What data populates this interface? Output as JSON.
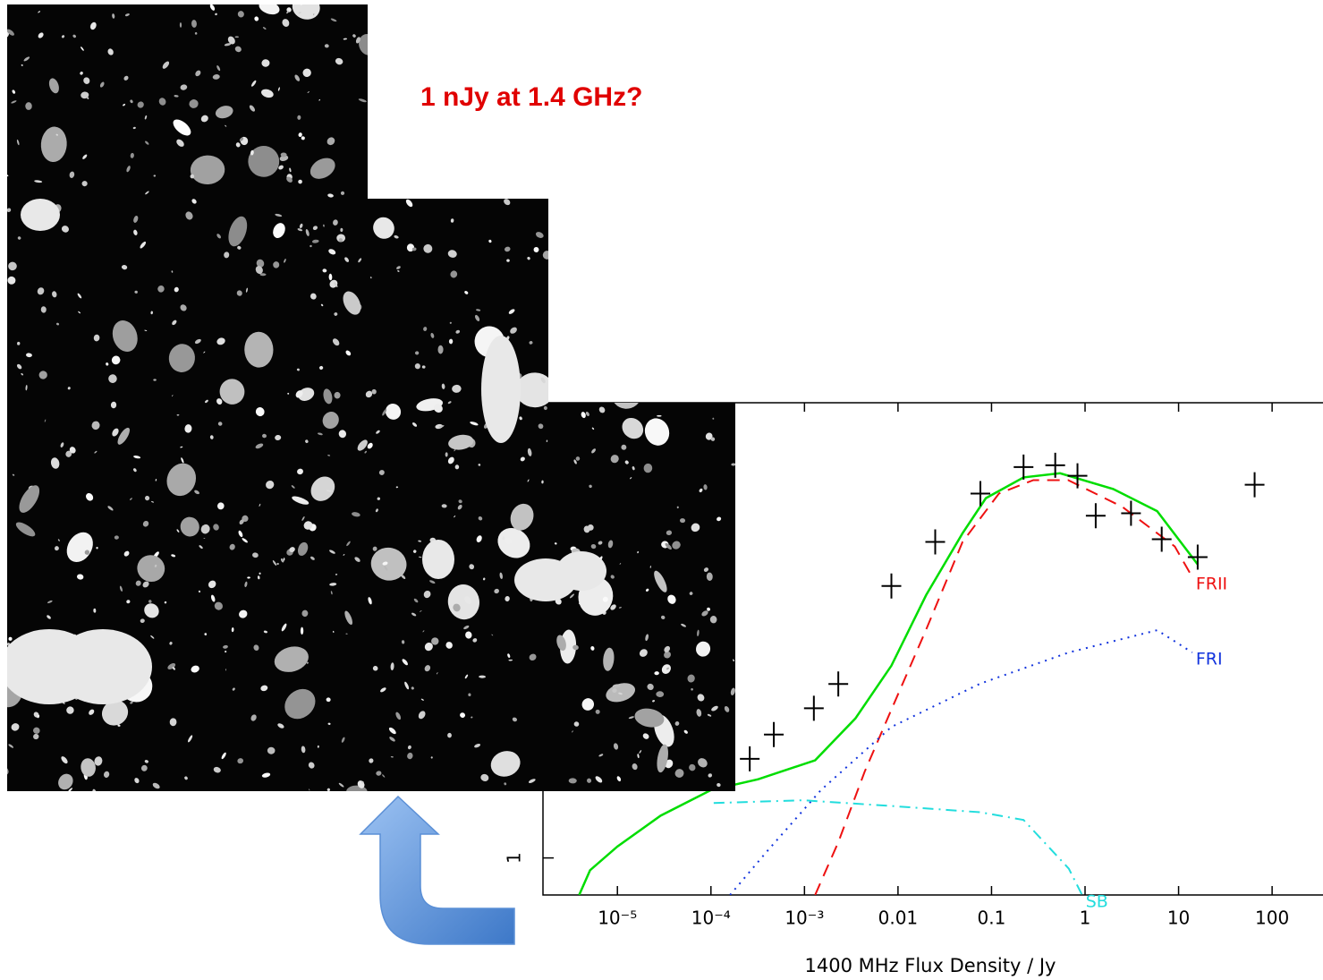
{
  "chart_data": {
    "type": "line",
    "title": "1 nJy at 1.4 GHz?",
    "x_label": "1400 MHz Flux Density / Jy",
    "x_log": true,
    "y_log": true,
    "xlim": [
      1.6e-06,
      350
    ],
    "ylim": [
      0.57,
      1000
    ],
    "xticks": [
      {
        "value": 1e-05,
        "label": "10⁻⁵"
      },
      {
        "value": 0.0001,
        "label": "10⁻⁴"
      },
      {
        "value": 0.001,
        "label": "10⁻³"
      },
      {
        "value": 0.01,
        "label": "0.01"
      },
      0.1,
      1,
      10,
      100
    ],
    "yticks": [
      1
    ],
    "series": [
      {
        "color": "#00dd00",
        "style": "solid",
        "x": [
          3.9e-06,
          5.1e-06,
          1e-05,
          2.9e-05,
          0.0001,
          0.00032,
          0.0013,
          0.0035,
          0.0085,
          0.02,
          0.049,
          0.087,
          0.22,
          0.54,
          2.0,
          5.9,
          16
        ],
        "values": [
          0.57,
          0.83,
          1.19,
          1.9,
          2.8,
          3.3,
          4.4,
          8.3,
          18.5,
          54,
          138,
          235,
          322,
          343,
          270,
          193,
          86
        ]
      },
      {
        "name": "FRII",
        "color": "#ee1111",
        "style": "dashed",
        "x": [
          0.0013,
          0.0023,
          0.0044,
          0.0085,
          0.02,
          0.049,
          0.12,
          0.28,
          0.66,
          2.5,
          9.1,
          14
        ],
        "values": [
          0.57,
          1.27,
          3.7,
          9.5,
          32,
          121,
          252,
          309,
          309,
          206,
          113,
          71
        ]
      },
      {
        "name": "FRI",
        "color": "#1133dd",
        "style": "dotted",
        "x": [
          0.00016,
          0.0004,
          0.0015,
          0.0085,
          0.076,
          0.67,
          5.9,
          14
        ],
        "values": [
          0.57,
          1.11,
          2.8,
          7.3,
          14.1,
          22.6,
          31.7,
          22.6
        ]
      },
      {
        "name": "SB",
        "color": "#22dddd",
        "style": "dashdot",
        "x": [
          0.000107,
          0.00096,
          0.0085,
          0.076,
          0.22,
          0.67,
          0.93
        ],
        "values": [
          2.3,
          2.4,
          2.2,
          2.0,
          1.78,
          0.85,
          0.57
        ]
      },
      {
        "color": "#000000",
        "style": "points",
        "x": [
          0.00026,
          0.00047,
          0.00126,
          0.0023,
          0.0085,
          0.025,
          0.076,
          0.22,
          0.48,
          0.83,
          1.3,
          3.1,
          6.6,
          16,
          65
        ],
        "values": [
          4.5,
          6.5,
          9.7,
          14,
          62,
          121,
          252,
          377,
          387,
          330,
          180,
          187,
          126,
          96,
          288
        ]
      }
    ]
  }
}
